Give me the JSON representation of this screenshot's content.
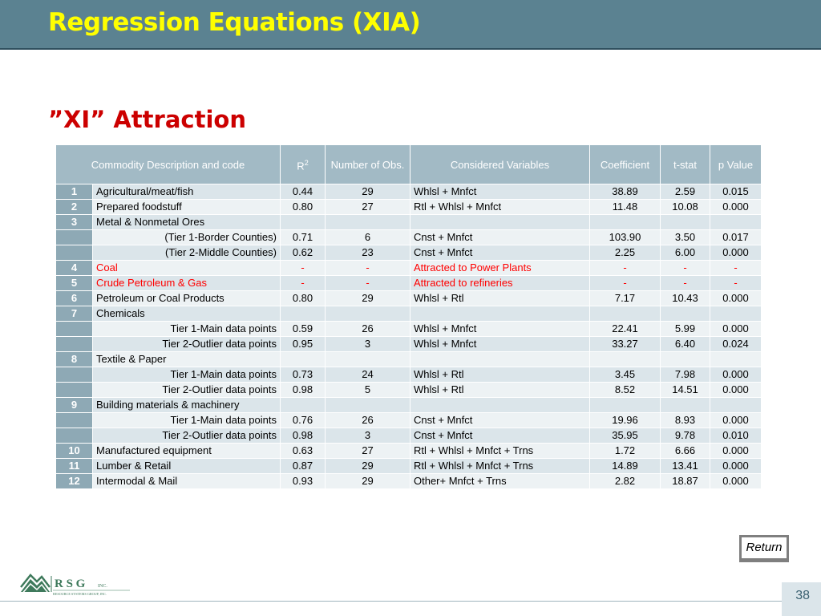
{
  "slide": {
    "title": "Regression Equations (XIA)",
    "subtitle": "”XI” Attraction",
    "page_number": "38",
    "return_label": "Return"
  },
  "logo": {
    "letters": "R S G",
    "suffix": "INC.",
    "tagline": "RESOURCE SYSTEMS GROUP, INC."
  },
  "table": {
    "headers": {
      "commodity": "Commodity Description and code",
      "r2_base": "R",
      "r2_sup": "2",
      "obs": "Number of Obs.",
      "vars": "Considered Variables",
      "coef": "Coefficient",
      "tstat": "t-stat",
      "pvalue": "p Value"
    },
    "rows": [
      {
        "code": "1",
        "desc": "Agricultural/meat/fish",
        "r2": "0.44",
        "obs": "29",
        "vars": "Whlsl + Mnfct",
        "coef": "38.89",
        "tstat": "2.59",
        "p": "0.015"
      },
      {
        "code": "2",
        "desc": "Prepared foodstuff",
        "r2": "0.80",
        "obs": "27",
        "vars": "Rtl + Whlsl + Mnfct",
        "coef": "11.48",
        "tstat": "10.08",
        "p": "0.000"
      },
      {
        "code": "3",
        "desc": "Metal & Nonmetal Ores",
        "r2": "",
        "obs": "",
        "vars": "",
        "coef": "",
        "tstat": "",
        "p": ""
      },
      {
        "code": "",
        "desc": "(Tier 1-Border Counties)",
        "r2": "0.71",
        "obs": "6",
        "vars": "Cnst + Mnfct",
        "coef": "103.90",
        "tstat": "3.50",
        "p": "0.017"
      },
      {
        "code": "",
        "desc": "(Tier 2-Middle Counties)",
        "r2": "0.62",
        "obs": "23",
        "vars": "Cnst + Mnfct",
        "coef": "2.25",
        "tstat": "6.00",
        "p": "0.000"
      },
      {
        "code": "4",
        "desc": "Coal",
        "r2": "-",
        "obs": "-",
        "vars": "Attracted to Power Plants",
        "coef": "-",
        "tstat": "-",
        "p": "-"
      },
      {
        "code": "5",
        "desc": "Crude Petroleum & Gas",
        "r2": "-",
        "obs": "-",
        "vars": "Attracted to refineries",
        "coef": "-",
        "tstat": "-",
        "p": "-"
      },
      {
        "code": "6",
        "desc": "Petroleum or Coal Products",
        "r2": "0.80",
        "obs": "29",
        "vars": "Whlsl + Rtl",
        "coef": "7.17",
        "tstat": "10.43",
        "p": "0.000"
      },
      {
        "code": "7",
        "desc": "Chemicals",
        "r2": "",
        "obs": "",
        "vars": "",
        "coef": "",
        "tstat": "",
        "p": ""
      },
      {
        "code": "",
        "desc": "Tier 1-Main data points",
        "r2": "0.59",
        "obs": "26",
        "vars": "Whlsl + Mnfct",
        "coef": "22.41",
        "tstat": "5.99",
        "p": "0.000"
      },
      {
        "code": "",
        "desc": "Tier 2-Outlier data points",
        "r2": "0.95",
        "obs": "3",
        "vars": "Whlsl + Mnfct",
        "coef": "33.27",
        "tstat": "6.40",
        "p": "0.024"
      },
      {
        "code": "8",
        "desc": "Textile & Paper",
        "r2": "",
        "obs": "",
        "vars": "",
        "coef": "",
        "tstat": "",
        "p": ""
      },
      {
        "code": "",
        "desc": "Tier 1-Main data points",
        "r2": "0.73",
        "obs": "24",
        "vars": "Whlsl + Rtl",
        "coef": "3.45",
        "tstat": "7.98",
        "p": "0.000"
      },
      {
        "code": "",
        "desc": "Tier 2-Outlier data points",
        "r2": "0.98",
        "obs": "5",
        "vars": "Whlsl + Rtl",
        "coef": "8.52",
        "tstat": "14.51",
        "p": "0.000"
      },
      {
        "code": "9",
        "desc": "Building materials & machinery",
        "r2": "",
        "obs": "",
        "vars": "",
        "coef": "",
        "tstat": "",
        "p": ""
      },
      {
        "code": "",
        "desc": "Tier 1-Main data points",
        "r2": "0.76",
        "obs": "26",
        "vars": "Cnst + Mnfct",
        "coef": "19.96",
        "tstat": "8.93",
        "p": "0.000"
      },
      {
        "code": "",
        "desc": "Tier 2-Outlier data points",
        "r2": "0.98",
        "obs": "3",
        "vars": "Cnst + Mnfct",
        "coef": "35.95",
        "tstat": "9.78",
        "p": "0.010"
      },
      {
        "code": "10",
        "desc": "Manufactured equipment",
        "r2": "0.63",
        "obs": "27",
        "vars": "Rtl + Whlsl + Mnfct + Trns",
        "coef": "1.72",
        "tstat": "6.66",
        "p": "0.000"
      },
      {
        "code": "11",
        "desc": "Lumber & Retail",
        "r2": "0.87",
        "obs": "29",
        "vars": "Rtl + Whlsl + Mnfct + Trns",
        "coef": "14.89",
        "tstat": "13.41",
        "p": "0.000"
      },
      {
        "code": "12",
        "desc": "Intermodal & Mail",
        "r2": "0.93",
        "obs": "29",
        "vars": "Other+ Mnfct + Trns",
        "coef": "2.82",
        "tstat": "18.87",
        "p": "0.000"
      }
    ]
  },
  "colors": {
    "title_bar": "#5b8291",
    "title_text": "#ffff00",
    "subtitle_text": "#cc0000",
    "highlight_text": "#ff0000"
  }
}
